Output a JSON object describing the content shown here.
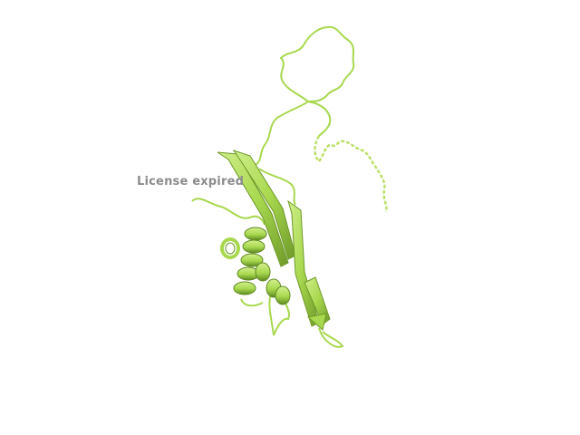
{
  "viewer": {
    "watermark_text": "License expired"
  },
  "molecule": {
    "representation": "cartoon",
    "color": "#a8d84e",
    "color_dark": "#6f9a2a",
    "color_light": "#cfee8a"
  }
}
